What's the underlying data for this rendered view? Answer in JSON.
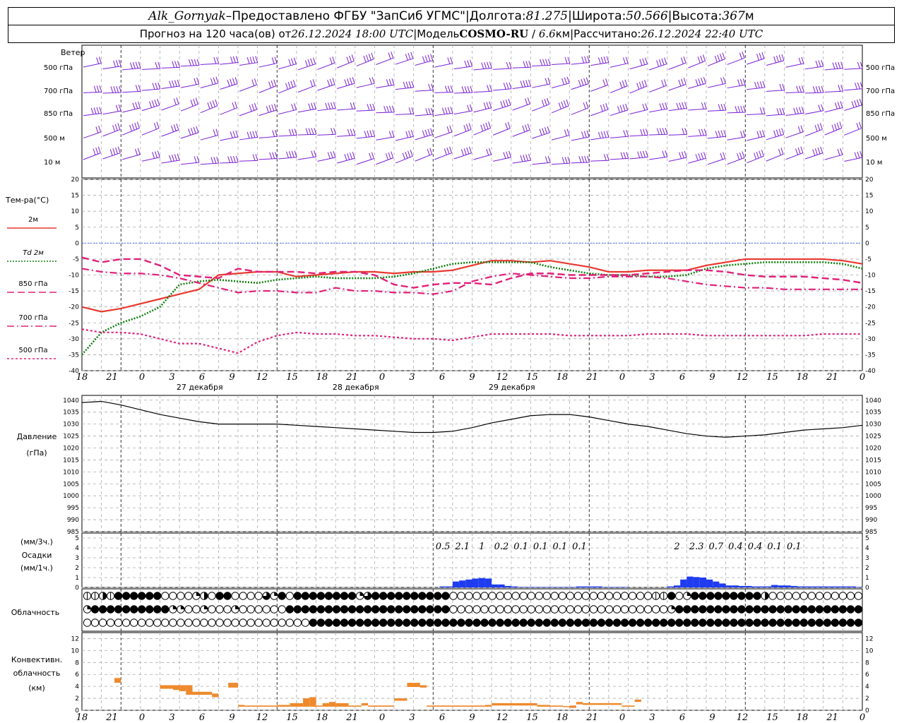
{
  "header": {
    "station": "Alk_Gornyak",
    "dash": "–",
    "provider": "Предоставлено ФГБУ \"ЗапСиб УГМС\"",
    "lon_label": "Долгота:",
    "lon_value": "81.275",
    "lat_label": "Широта:",
    "lat_value": "50.566",
    "alt_label": "Высота:",
    "alt_value": "367",
    "alt_unit": "м",
    "forecast_prefix": "Прогноз на 120 часа(ов) от",
    "forecast_start": "26.12.2024 18:00 UTC",
    "model_label": "Модель",
    "model_name": "COSMO-RU",
    "model_res": "6.6",
    "model_unit": "км",
    "calc_label": "Рассчитано:",
    "calc_time": "26.12.2024 22:40 UTC",
    "sep": "|"
  },
  "wind_panel": {
    "title": "Ветер",
    "levels": [
      "500 гПа",
      "700 гПа",
      "850 гПа",
      "500 м",
      "10 м"
    ],
    "color": "#7a1fd6"
  },
  "temp_panel": {
    "title": "Тем-ра(°C)",
    "legend": [
      {
        "label": "2м",
        "color": "#e8392f",
        "style": "solid"
      },
      {
        "label": "Td 2м",
        "color": "#118011",
        "style": "dotted"
      },
      {
        "label": "850 гПа",
        "color": "#e0207a",
        "style": "dash"
      },
      {
        "label": "700 гПа",
        "color": "#e0207a",
        "style": "dashdot"
      },
      {
        "label": "500 гПа",
        "color": "#e0207a",
        "style": "dot"
      }
    ],
    "y_ticks": [
      "20",
      "15",
      "10",
      "5",
      "0",
      "-5",
      "-10",
      "-15",
      "-20",
      "-25",
      "-30",
      "-35",
      "-40"
    ]
  },
  "x_axis": {
    "hour_labels": [
      "18",
      "21",
      "0",
      "3",
      "6",
      "9",
      "12",
      "15",
      "18",
      "21",
      "0",
      "3",
      "6",
      "9",
      "12",
      "15",
      "18",
      "21",
      "0",
      "3",
      "6",
      "9",
      "12",
      "15",
      "18",
      "21",
      "0"
    ],
    "days": [
      "27 декабря",
      "28 декабря",
      "29 декабря"
    ]
  },
  "pressure_panel": {
    "title": "Давление",
    "unit": "(гПа)",
    "y_ticks": [
      "1040",
      "1035",
      "1030",
      "1025",
      "1020",
      "1015",
      "1010",
      "1005",
      "1000",
      "995",
      "990",
      "985"
    ]
  },
  "precip_panel": {
    "title_unit1": "(мм/3ч.)",
    "title": "Осадки",
    "title_unit2": "(мм/1ч.)",
    "y_ticks": [
      "5",
      "4",
      "3",
      "2",
      "1",
      "0"
    ],
    "totals": [
      "0.5",
      "2.1",
      "1",
      "0.2",
      "0.1",
      "0.1",
      "0.1",
      "0.1",
      "2",
      "2.3",
      "0.7",
      "0.4",
      "0.4",
      "0.1",
      "0.1"
    ]
  },
  "cloud_panel": {
    "title": "Облачность"
  },
  "conv_panel": {
    "title1": "Конвективн.",
    "title2": "облачность",
    "unit": "(км)",
    "y_ticks": [
      "12",
      "10",
      "8",
      "6",
      "4",
      "2",
      "0"
    ]
  },
  "chart_data": [
    {
      "type": "line",
      "title": "Тем-ра(°C)",
      "x_hours": [
        0,
        3,
        6,
        9,
        12,
        15,
        18,
        21,
        24,
        27,
        30,
        33,
        36,
        39,
        42,
        45,
        48,
        51,
        54,
        57,
        60,
        63,
        66,
        69,
        72,
        75,
        78,
        81,
        84,
        87,
        90,
        93,
        96,
        99,
        102,
        105,
        108,
        111,
        114,
        117,
        120
      ],
      "ylim": [
        -40,
        20
      ],
      "series": [
        {
          "name": "2м",
          "values": [
            -20,
            -21.5,
            -20.5,
            -19,
            -17.5,
            -16,
            -14.5,
            -10,
            -9.5,
            -9,
            -9,
            -10.5,
            -10,
            -9.5,
            -9,
            -9,
            -9.5,
            -9,
            -9,
            -8.5,
            -7,
            -5.5,
            -5.5,
            -6,
            -5.5,
            -6.5,
            -7.5,
            -9,
            -9,
            -8.5,
            -8.5,
            -8.5,
            -7,
            -6,
            -5,
            -5,
            -5,
            -5,
            -5,
            -5.5,
            -6.5
          ]
        },
        {
          "name": "Td 2м",
          "values": [
            -35,
            -28,
            -25,
            -23,
            -20,
            -13,
            -12,
            -11.5,
            -12,
            -12.5,
            -11.5,
            -11,
            -10.5,
            -11,
            -11,
            -11,
            -10.5,
            -9.5,
            -8,
            -6.5,
            -6,
            -6,
            -6,
            -6,
            -7.5,
            -8.5,
            -9.5,
            -10,
            -10,
            -10.5,
            -10.5,
            -10,
            -8,
            -7,
            -6.5,
            -6,
            -6,
            -6,
            -6,
            -6.5,
            -8
          ]
        },
        {
          "name": "850 гПа",
          "values": [
            -4.5,
            -6,
            -5,
            -5,
            -7,
            -10,
            -10.5,
            -11,
            -8,
            -9,
            -9,
            -9,
            -9.5,
            -9,
            -9,
            -10,
            -13,
            -14,
            -13,
            -12.5,
            -12.5,
            -13,
            -11,
            -9.5,
            -9.5,
            -10,
            -10,
            -10,
            -10,
            -9.5,
            -9,
            -8.5,
            -8.5,
            -9,
            -10,
            -10.5,
            -10.5,
            -10.5,
            -11,
            -11.5,
            -12.5
          ]
        },
        {
          "name": "700 гПа",
          "values": [
            -8,
            -9,
            -9.5,
            -9.5,
            -10,
            -11,
            -12.5,
            -14,
            -15.5,
            -15,
            -15,
            -15.5,
            -15.5,
            -14,
            -15,
            -15,
            -15.5,
            -15.5,
            -16,
            -15,
            -12,
            -10.5,
            -9.5,
            -10,
            -10.5,
            -11,
            -11,
            -10.5,
            -10.5,
            -10.5,
            -11,
            -12,
            -13,
            -13.5,
            -14,
            -14,
            -14.5,
            -14.5,
            -14.5,
            -14.5,
            -14.5
          ]
        },
        {
          "name": "500 гПа",
          "values": [
            -27,
            -28,
            -28,
            -28.5,
            -30,
            -31.5,
            -31.5,
            -33,
            -34.5,
            -31,
            -29,
            -28,
            -28.5,
            -28.5,
            -29,
            -29,
            -29.5,
            -30,
            -30,
            -30.5,
            -29.5,
            -28.5,
            -28.5,
            -28.5,
            -28.5,
            -29,
            -29,
            -29,
            -29,
            -28.5,
            -28.5,
            -28.5,
            -29,
            -29,
            -29,
            -29,
            -29,
            -29,
            -28.5,
            -28.5,
            -28.5
          ]
        }
      ]
    },
    {
      "type": "line",
      "title": "Давление",
      "x_hours": [
        0,
        3,
        6,
        9,
        12,
        15,
        18,
        21,
        24,
        27,
        30,
        33,
        36,
        39,
        42,
        45,
        48,
        51,
        54,
        57,
        60,
        63,
        66,
        69,
        72,
        75,
        78,
        81,
        84,
        87,
        90,
        93,
        96,
        99,
        102,
        105,
        108,
        111,
        114,
        117,
        120
      ],
      "ylim": [
        985,
        1040
      ],
      "series": [
        {
          "name": "Давление",
          "values": [
            1039,
            1039.5,
            1038,
            1036,
            1034,
            1032.5,
            1031,
            1030,
            1030,
            1030,
            1030,
            1029.5,
            1029,
            1028.5,
            1028,
            1027.5,
            1027,
            1026.5,
            1026.5,
            1027,
            1028.5,
            1030.5,
            1032,
            1033.5,
            1034,
            1034,
            1033,
            1031.5,
            1030,
            1029,
            1027.5,
            1026,
            1025,
            1024.5,
            1025,
            1025.5,
            1026.5,
            1027.5,
            1028,
            1028.5,
            1029.5
          ]
        }
      ]
    },
    {
      "type": "bar",
      "title": "Осадки",
      "x_hours_3h": [
        54,
        57,
        60,
        63,
        66,
        69,
        72,
        75,
        78,
        81,
        90,
        93,
        96,
        99,
        102,
        105,
        108,
        111,
        114,
        117
      ],
      "totals_3h": [
        0.5,
        2.1,
        1,
        0.2,
        0.1,
        0.1,
        0.1,
        0.1,
        0,
        0,
        2,
        2.3,
        0.7,
        0.4,
        0.4,
        0.1,
        0.1,
        0,
        0,
        0
      ],
      "hourly_values": [
        0,
        0,
        0,
        0,
        0,
        0,
        0,
        0,
        0,
        0,
        0,
        0,
        0,
        0,
        0,
        0,
        0,
        0,
        0,
        0,
        0,
        0,
        0,
        0,
        0,
        0,
        0,
        0,
        0,
        0,
        0,
        0,
        0,
        0,
        0,
        0,
        0,
        0,
        0,
        0,
        0,
        0,
        0,
        0,
        0,
        0,
        0,
        0,
        0,
        0,
        0,
        0,
        0,
        0,
        0,
        0.1,
        0.1,
        0.6,
        0.7,
        0.8,
        0.9,
        0.95,
        0.9,
        0.3,
        0.3,
        0.15,
        0.1,
        0.05,
        0.05,
        0.05,
        0.05,
        0.05,
        0.05,
        0.05,
        0.05,
        0.05,
        0.1,
        0.1,
        0.1,
        0.1,
        0.05,
        0.05,
        0.05,
        0.05,
        0,
        0,
        0,
        0,
        0,
        0,
        0.1,
        0.2,
        0.8,
        1.1,
        1.05,
        1,
        0.8,
        0.6,
        0.4,
        0.2,
        0.2,
        0.15,
        0.15,
        0.1,
        0.1,
        0.1,
        0.25,
        0.2,
        0.2,
        0.15,
        0.1,
        0.1,
        0.1,
        0.1,
        0.1,
        0.1,
        0.1,
        0.1,
        0.1,
        0.05,
        0
      ],
      "ylim": [
        0,
        5
      ]
    },
    {
      "type": "heatmap",
      "title": "Облачность",
      "rows": [
        "cchcffffff0000qh0ff0000tqf0ffffffffqtffffffffff00000000000000000000000000ccf0qfffffffffh00000000000000000",
        "qffffffffffqq00q000q000000fffffffffffffffffffff0000000000000000000000000000qfffffffffffffffffffffffff000000000",
        "00000000000000000000000000000fffffffffffffffffffffffffffffffffffffffffffffffffffffffffffffffffffffffffffffffffff"
      ]
    },
    {
      "type": "bar",
      "title": "Конвективн. облачность",
      "ylim": [
        0,
        13
      ],
      "segments": [
        {
          "x0": 5,
          "x1": 6,
          "lo": 4.6,
          "hi": 5.4
        },
        {
          "x0": 12,
          "x1": 14,
          "lo": 3.6,
          "hi": 4.2
        },
        {
          "x0": 14,
          "x1": 15,
          "lo": 3.4,
          "hi": 4.2
        },
        {
          "x0": 15,
          "x1": 16,
          "lo": 3.2,
          "hi": 4.2
        },
        {
          "x0": 16,
          "x1": 17,
          "lo": 2.6,
          "hi": 4.2
        },
        {
          "x0": 17,
          "x1": 19,
          "lo": 2.6,
          "hi": 3.1
        },
        {
          "x0": 19,
          "x1": 20,
          "lo": 2.6,
          "hi": 3.1
        },
        {
          "x0": 20,
          "x1": 21,
          "lo": 2.2,
          "hi": 2.8
        },
        {
          "x0": 22.5,
          "x1": 24,
          "lo": 3.8,
          "hi": 4.6
        },
        {
          "x0": 24,
          "x1": 25,
          "lo": 0.6,
          "hi": 0.9
        },
        {
          "x0": 25,
          "x1": 30,
          "lo": 0.6,
          "hi": 0.8
        },
        {
          "x0": 30,
          "x1": 32,
          "lo": 0.6,
          "hi": 0.9
        },
        {
          "x0": 32,
          "x1": 34,
          "lo": 0.6,
          "hi": 1.2
        },
        {
          "x0": 34,
          "x1": 35,
          "lo": 0.6,
          "hi": 2
        },
        {
          "x0": 35,
          "x1": 36,
          "lo": 0.6,
          "hi": 2.2
        },
        {
          "x0": 36,
          "x1": 37,
          "lo": 0.6,
          "hi": 0.8
        },
        {
          "x0": 37,
          "x1": 38,
          "lo": 0.6,
          "hi": 1.2
        },
        {
          "x0": 38,
          "x1": 39,
          "lo": 0.6,
          "hi": 1.4
        },
        {
          "x0": 39,
          "x1": 41,
          "lo": 0.6,
          "hi": 1.2
        },
        {
          "x0": 41,
          "x1": 43,
          "lo": 0.6,
          "hi": 0.8
        },
        {
          "x0": 43,
          "x1": 44,
          "lo": 0.8,
          "hi": 1.2
        },
        {
          "x0": 44,
          "x1": 48,
          "lo": 0.6,
          "hi": 0.8
        },
        {
          "x0": 48,
          "x1": 50,
          "lo": 1.6,
          "hi": 2
        },
        {
          "x0": 50,
          "x1": 52,
          "lo": 3.9,
          "hi": 4.6
        },
        {
          "x0": 52,
          "x1": 53,
          "lo": 3.8,
          "hi": 4.2
        },
        {
          "x0": 53,
          "x1": 62,
          "lo": 0.6,
          "hi": 0.8
        },
        {
          "x0": 62,
          "x1": 63,
          "lo": 0.6,
          "hi": 0.9
        },
        {
          "x0": 63,
          "x1": 70,
          "lo": 0.8,
          "hi": 1.2
        },
        {
          "x0": 70,
          "x1": 72,
          "lo": 0.6,
          "hi": 0.9
        },
        {
          "x0": 72,
          "x1": 74,
          "lo": 0.6,
          "hi": 0.8
        },
        {
          "x0": 74,
          "x1": 75,
          "lo": 0.6,
          "hi": 0.7
        },
        {
          "x0": 75,
          "x1": 76,
          "lo": 0.4,
          "hi": 0.8
        },
        {
          "x0": 76,
          "x1": 77,
          "lo": 1,
          "hi": 1.4
        },
        {
          "x0": 77,
          "x1": 83,
          "lo": 0.9,
          "hi": 1.2
        },
        {
          "x0": 83,
          "x1": 84,
          "lo": 0.6,
          "hi": 0.8
        },
        {
          "x0": 84,
          "x1": 85,
          "lo": 0.6,
          "hi": 0.8
        },
        {
          "x0": 85,
          "x1": 86,
          "lo": 1.4,
          "hi": 1.8
        }
      ]
    }
  ]
}
